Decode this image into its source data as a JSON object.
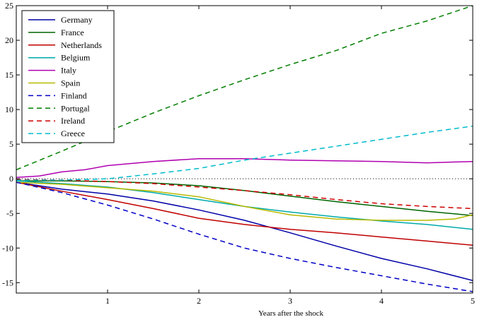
{
  "chart_data": {
    "type": "line",
    "title": "",
    "xlabel": "Years after the shock",
    "ylabel": "",
    "xlim": [
      0,
      5
    ],
    "ylim": [
      -16.5,
      25
    ],
    "xticks": [
      1,
      2,
      3,
      4,
      5
    ],
    "yticks": [
      -15,
      -10,
      -5,
      0,
      5,
      10,
      15,
      20,
      25
    ],
    "grid": false,
    "legend_position": "top-left",
    "zero_line": {
      "y": 0,
      "style": "dotted"
    },
    "series": [
      {
        "name": "Germany",
        "color": "#0000a8",
        "dash": "solid",
        "x": [
          0,
          0.5,
          1,
          1.5,
          2,
          2.5,
          3,
          3.5,
          4,
          4.5,
          5
        ],
        "y": [
          -0.5,
          -1.5,
          -2.2,
          -3.2,
          -4.5,
          -6.0,
          -7.8,
          -9.7,
          -11.5,
          -13.0,
          -14.7
        ]
      },
      {
        "name": "France",
        "color": "#006400",
        "dash": "solid",
        "x": [
          0,
          0.5,
          1,
          1.5,
          2,
          2.5,
          3,
          3.5,
          4,
          4.5,
          5
        ],
        "y": [
          -0.3,
          -0.3,
          -0.4,
          -0.6,
          -1.0,
          -1.7,
          -2.5,
          -3.3,
          -4.0,
          -4.7,
          -5.3
        ]
      },
      {
        "name": "Netherlands",
        "color": "#c00000",
        "dash": "solid",
        "x": [
          0,
          0.5,
          1,
          1.5,
          2,
          2.5,
          3,
          3.5,
          4,
          4.5,
          5
        ],
        "y": [
          -0.5,
          -1.8,
          -3.0,
          -4.3,
          -5.7,
          -6.6,
          -7.3,
          -7.8,
          -8.4,
          -9.0,
          -9.6
        ]
      },
      {
        "name": "Belgium",
        "color": "#00aaaa",
        "dash": "solid",
        "x": [
          0,
          0.5,
          1,
          1.5,
          2,
          2.5,
          3,
          3.5,
          4,
          4.5,
          5
        ],
        "y": [
          -0.3,
          -0.7,
          -1.2,
          -2.0,
          -3.0,
          -4.0,
          -4.8,
          -5.5,
          -6.1,
          -6.6,
          -7.3
        ]
      },
      {
        "name": "Italy",
        "color": "#b000b0",
        "dash": "solid",
        "x": [
          0,
          0.25,
          0.5,
          0.75,
          1,
          1.5,
          2,
          2.5,
          3,
          3.5,
          4,
          4.5,
          5
        ],
        "y": [
          0.2,
          0.4,
          1.0,
          1.3,
          1.9,
          2.5,
          2.9,
          2.9,
          2.7,
          2.6,
          2.5,
          2.3,
          2.5
        ]
      },
      {
        "name": "Spain",
        "color": "#b8b800",
        "dash": "solid",
        "x": [
          0,
          0.5,
          1,
          1.5,
          2,
          2.5,
          3,
          3.5,
          4,
          4.5,
          4.8,
          5
        ],
        "y": [
          -0.5,
          -0.8,
          -1.3,
          -1.8,
          -2.6,
          -4.0,
          -5.2,
          -5.8,
          -6.0,
          -6.0,
          -5.8,
          -5.2
        ]
      },
      {
        "name": "Finland",
        "color": "#0000c8",
        "dash": "dashed",
        "x": [
          0,
          0.5,
          1,
          1.5,
          2,
          2.5,
          3,
          3.5,
          4,
          4.5,
          5
        ],
        "y": [
          -0.5,
          -2.0,
          -3.8,
          -5.8,
          -8.0,
          -10.0,
          -11.5,
          -12.8,
          -14.0,
          -15.2,
          -16.3
        ]
      },
      {
        "name": "Portugal",
        "color": "#008000",
        "dash": "dashed",
        "x": [
          0,
          0.5,
          1,
          1.5,
          2,
          2.5,
          3,
          3.5,
          4,
          4.5,
          5
        ],
        "y": [
          1.3,
          4.0,
          6.8,
          9.5,
          12.0,
          14.3,
          16.5,
          18.5,
          21.0,
          22.8,
          25.0
        ]
      },
      {
        "name": "Ireland",
        "color": "#d00000",
        "dash": "dashed",
        "x": [
          0,
          0.5,
          1,
          1.5,
          2,
          2.5,
          3,
          3.5,
          4,
          4.5,
          5
        ],
        "y": [
          -0.1,
          -0.2,
          -0.4,
          -0.7,
          -1.2,
          -1.7,
          -2.3,
          -3.0,
          -3.6,
          -4.0,
          -4.3
        ]
      },
      {
        "name": "Greece",
        "color": "#00bbcc",
        "dash": "dashed",
        "x": [
          0,
          0.5,
          1,
          1.5,
          2,
          2.5,
          3,
          3.5,
          4,
          4.5,
          5
        ],
        "y": [
          -0.2,
          -0.2,
          0.0,
          0.7,
          1.5,
          2.7,
          3.7,
          4.7,
          5.7,
          6.7,
          7.6
        ]
      }
    ]
  }
}
